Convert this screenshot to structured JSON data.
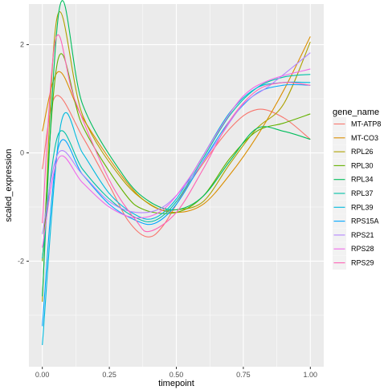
{
  "chart_data": {
    "type": "line",
    "title": "",
    "xlabel": "timepoint",
    "ylabel": "scaled_expression",
    "xlim": [
      -0.05,
      1.05
    ],
    "ylim": [
      -3.95,
      2.75
    ],
    "x_ticks": [
      0.0,
      0.25,
      0.5,
      0.75,
      1.0
    ],
    "x_tick_labels": [
      "0.00",
      "0.25",
      "0.50",
      "0.75",
      "1.00"
    ],
    "y_ticks": [
      -2,
      0,
      2
    ],
    "y_tick_labels": [
      "-2",
      "0",
      "2"
    ],
    "grid": true,
    "background": "#ebebeb",
    "legend_title": "gene_name",
    "legend_position": "right",
    "series": [
      {
        "name": "MT-ATP8",
        "color": "#F8766D",
        "x": [
          0,
          0.05,
          0.15,
          0.25,
          0.32,
          0.39,
          0.45,
          0.55,
          0.7,
          0.8,
          0.9,
          1.0
        ],
        "y": [
          -0.3,
          1.05,
          0.3,
          -0.6,
          -1.25,
          -1.55,
          -1.35,
          -0.55,
          0.45,
          0.8,
          0.65,
          0.25
        ]
      },
      {
        "name": "MT-CO3",
        "color": "#DB8E00",
        "x": [
          0,
          0.06,
          0.15,
          0.3,
          0.4,
          0.5,
          0.6,
          0.7,
          0.8,
          0.9,
          1.0
        ],
        "y": [
          0.4,
          1.5,
          0.65,
          -0.45,
          -0.95,
          -1.1,
          -0.95,
          -0.4,
          0.3,
          1.15,
          2.15
        ]
      },
      {
        "name": "RPL26",
        "color": "#AEA200",
        "x": [
          0,
          0.055,
          0.15,
          0.3,
          0.42,
          0.5,
          0.6,
          0.7,
          0.8,
          0.9,
          1.0
        ],
        "y": [
          -2.75,
          2.5,
          0.7,
          -0.5,
          -1.0,
          -1.05,
          -0.9,
          -0.2,
          0.45,
          0.9,
          2.05
        ]
      },
      {
        "name": "RPL30",
        "color": "#64B200",
        "x": [
          0,
          0.06,
          0.15,
          0.3,
          0.38,
          0.5,
          0.6,
          0.7,
          0.8,
          0.9,
          1.0
        ],
        "y": [
          -2.0,
          1.75,
          0.5,
          -0.7,
          -1.05,
          -1.1,
          -0.8,
          -0.1,
          0.4,
          0.55,
          0.72
        ]
      },
      {
        "name": "RPL34",
        "color": "#00BD5C",
        "x": [
          0,
          0.065,
          0.15,
          0.3,
          0.4,
          0.5,
          0.6,
          0.7,
          0.8,
          0.9,
          1.0
        ],
        "y": [
          -2.65,
          2.7,
          0.9,
          -0.4,
          -0.9,
          -1.05,
          -0.8,
          -0.15,
          0.45,
          0.4,
          0.25
        ]
      },
      {
        "name": "RPL37",
        "color": "#00C1A7",
        "x": [
          0,
          0.06,
          0.15,
          0.25,
          0.35,
          0.42,
          0.5,
          0.6,
          0.7,
          0.8,
          0.9,
          1.0
        ],
        "y": [
          -1.95,
          0.35,
          -0.3,
          -0.85,
          -1.2,
          -1.25,
          -0.9,
          -0.1,
          0.7,
          1.2,
          1.4,
          1.45
        ]
      },
      {
        "name": "RPL39",
        "color": "#00BADE",
        "x": [
          0,
          0.07,
          0.15,
          0.25,
          0.35,
          0.42,
          0.5,
          0.6,
          0.7,
          0.8,
          0.9,
          1.0
        ],
        "y": [
          -3.55,
          0.55,
          0.0,
          -0.75,
          -1.15,
          -1.2,
          -0.85,
          -0.05,
          0.75,
          1.2,
          1.3,
          1.3
        ]
      },
      {
        "name": "RPS15A",
        "color": "#00A6FF",
        "x": [
          0,
          0.06,
          0.15,
          0.25,
          0.35,
          0.42,
          0.5,
          0.6,
          0.7,
          0.8,
          0.9,
          1.0
        ],
        "y": [
          -3.2,
          0.1,
          -0.4,
          -0.95,
          -1.25,
          -1.3,
          -0.95,
          -0.15,
          0.6,
          1.1,
          1.25,
          1.25
        ]
      },
      {
        "name": "RPS21",
        "color": "#B385FF",
        "x": [
          0,
          0.06,
          0.15,
          0.25,
          0.35,
          0.45,
          0.55,
          0.65,
          0.75,
          0.85,
          1.0
        ],
        "y": [
          -1.5,
          0.0,
          -0.4,
          -0.9,
          -1.1,
          -1.0,
          -0.5,
          0.2,
          0.9,
          1.25,
          1.85
        ]
      },
      {
        "name": "RPS28",
        "color": "#EF67EB",
        "x": [
          0,
          0.06,
          0.15,
          0.25,
          0.35,
          0.45,
          0.55,
          0.65,
          0.75,
          0.85,
          1.0
        ],
        "y": [
          -1.75,
          -0.1,
          -0.55,
          -1.0,
          -1.2,
          -1.05,
          -0.45,
          0.35,
          1.05,
          1.35,
          1.55
        ]
      },
      {
        "name": "RPS29",
        "color": "#FF63B6",
        "x": [
          0,
          0.05,
          0.12,
          0.25,
          0.35,
          0.4,
          0.5,
          0.6,
          0.7,
          0.8,
          0.9,
          1.0
        ],
        "y": [
          -1.3,
          2.1,
          1.0,
          -0.5,
          -1.25,
          -1.45,
          -1.1,
          -0.3,
          0.6,
          1.15,
          1.3,
          1.25
        ]
      }
    ]
  }
}
